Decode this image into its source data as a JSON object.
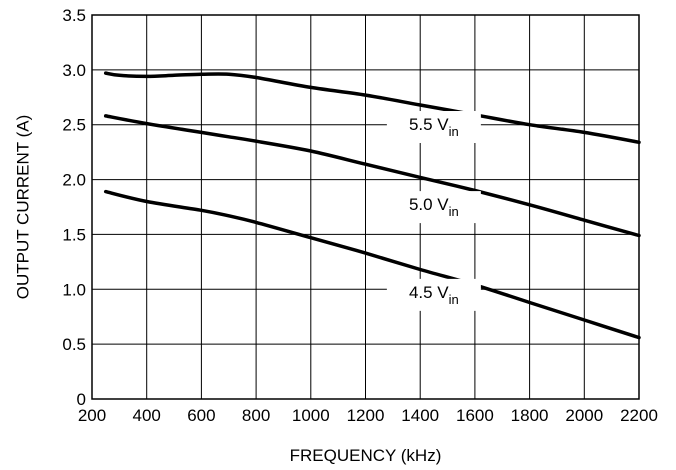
{
  "chart_data": {
    "type": "line",
    "title": "",
    "xlabel": "FREQUENCY (kHz)",
    "ylabel": "OUTPUT CURRENT (A)",
    "xlim": [
      200,
      2200
    ],
    "ylim": [
      0,
      3.5
    ],
    "x_ticks": [
      "200",
      "400",
      "600",
      "800",
      "1000",
      "1200",
      "1400",
      "1600",
      "1800",
      "2000",
      "2200"
    ],
    "y_ticks": [
      "0",
      "0.5",
      "1.0",
      "1.5",
      "2.0",
      "2.5",
      "3.0",
      "3.5"
    ],
    "grid": true,
    "series": [
      {
        "name": "5.5 V",
        "name_sub": "in",
        "label_x": 1450,
        "label_y": 2.47,
        "points": [
          [
            250,
            2.97
          ],
          [
            300,
            2.95
          ],
          [
            400,
            2.94
          ],
          [
            500,
            2.95
          ],
          [
            600,
            2.96
          ],
          [
            700,
            2.96
          ],
          [
            800,
            2.93
          ],
          [
            1000,
            2.84
          ],
          [
            1200,
            2.77
          ],
          [
            1400,
            2.68
          ],
          [
            1600,
            2.59
          ],
          [
            1800,
            2.5
          ],
          [
            2000,
            2.43
          ],
          [
            2200,
            2.34
          ]
        ]
      },
      {
        "name": "5.0 V",
        "name_sub": "in",
        "label_x": 1450,
        "label_y": 1.74,
        "points": [
          [
            250,
            2.58
          ],
          [
            400,
            2.51
          ],
          [
            600,
            2.43
          ],
          [
            700,
            2.39
          ],
          [
            800,
            2.35
          ],
          [
            1000,
            2.26
          ],
          [
            1200,
            2.14
          ],
          [
            1400,
            2.02
          ],
          [
            1600,
            1.9
          ],
          [
            1800,
            1.77
          ],
          [
            2000,
            1.63
          ],
          [
            2200,
            1.49
          ]
        ]
      },
      {
        "name": "4.5 V",
        "name_sub": "in",
        "label_x": 1450,
        "label_y": 0.94,
        "points": [
          [
            250,
            1.89
          ],
          [
            400,
            1.8
          ],
          [
            600,
            1.72
          ],
          [
            700,
            1.67
          ],
          [
            800,
            1.61
          ],
          [
            1000,
            1.47
          ],
          [
            1200,
            1.33
          ],
          [
            1400,
            1.18
          ],
          [
            1600,
            1.04
          ],
          [
            1800,
            0.88
          ],
          [
            2000,
            0.72
          ],
          [
            2200,
            0.56
          ]
        ]
      }
    ]
  }
}
